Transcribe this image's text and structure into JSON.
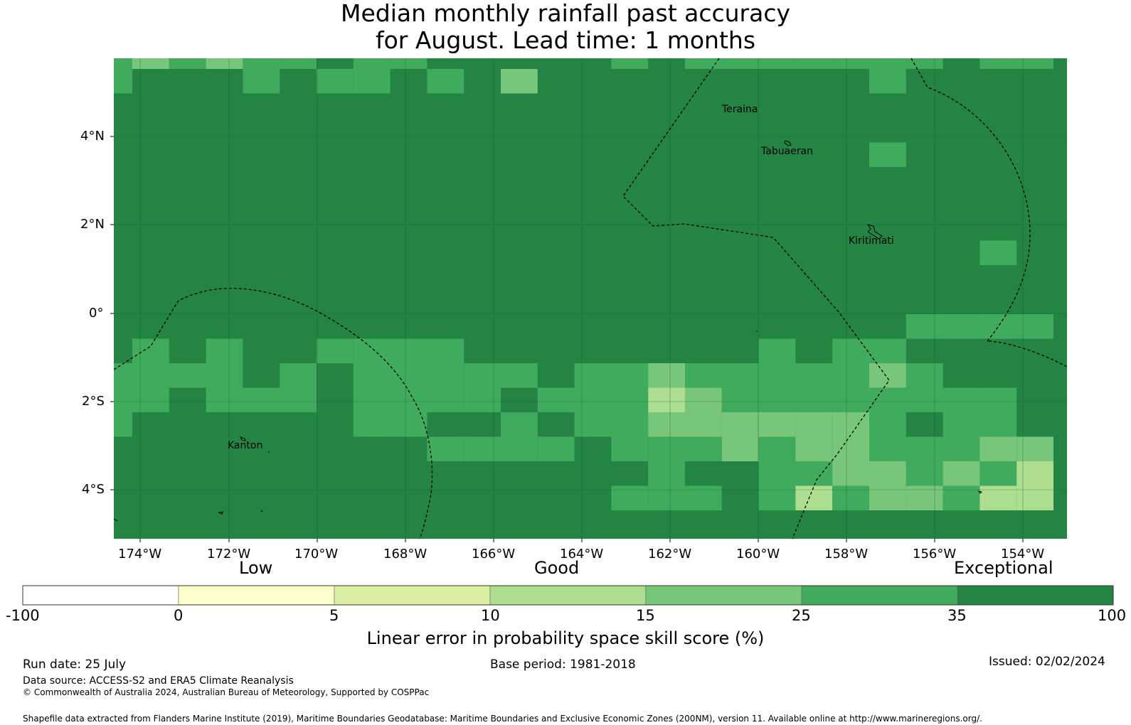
{
  "title": {
    "line1": "Median monthly rainfall past accuracy",
    "line2": "for August. Lead time: 1 months"
  },
  "map": {
    "lat_ticks": [
      "4°N",
      "2°N",
      "0°",
      "2°S",
      "4°S"
    ],
    "lon_ticks": [
      "174°W",
      "172°W",
      "170°W",
      "168°W",
      "166°W",
      "164°W",
      "162°W",
      "160°W",
      "158°W",
      "156°W",
      "154°W"
    ],
    "places": [
      "Teraina",
      "Tabuaeran",
      "Kiritimati",
      "Kanton"
    ],
    "colors": {
      "c35_100": "#238443",
      "c25_35": "#41ab5d",
      "c15_25": "#78c679",
      "c10_15": "#addd8e",
      "c5_10": "#d9f0a3",
      "c0_5": "#ffffcc",
      "cneg": "#ffffff"
    }
  },
  "colorbar": {
    "categories": [
      "Low",
      "Good",
      "Exceptional"
    ],
    "ticks": [
      "-100",
      "0",
      "5",
      "10",
      "15",
      "25",
      "35",
      "100"
    ],
    "label": "Linear error in probability space skill score (%)"
  },
  "footer": {
    "run_date": "Run date: 25 July",
    "base_period": "Base period: 1981-2018",
    "issued": "Issued: 02/02/2024",
    "data_source": "Data source: ACCESS-S2 and ERA5 Climate Reanalysis",
    "copyright": "© Commonwealth of Australia 2024, Australian Bureau of Meteorology, Supported by COSPPac",
    "shapefile": "Shapefile data extracted from Flanders Marine Institute (2019), Maritime Boundaries Geodatabase: Maritime Boundaries and Exclusive Economic Zones (200NM), version 11. Available online at http://www.marineregions.org/."
  }
}
